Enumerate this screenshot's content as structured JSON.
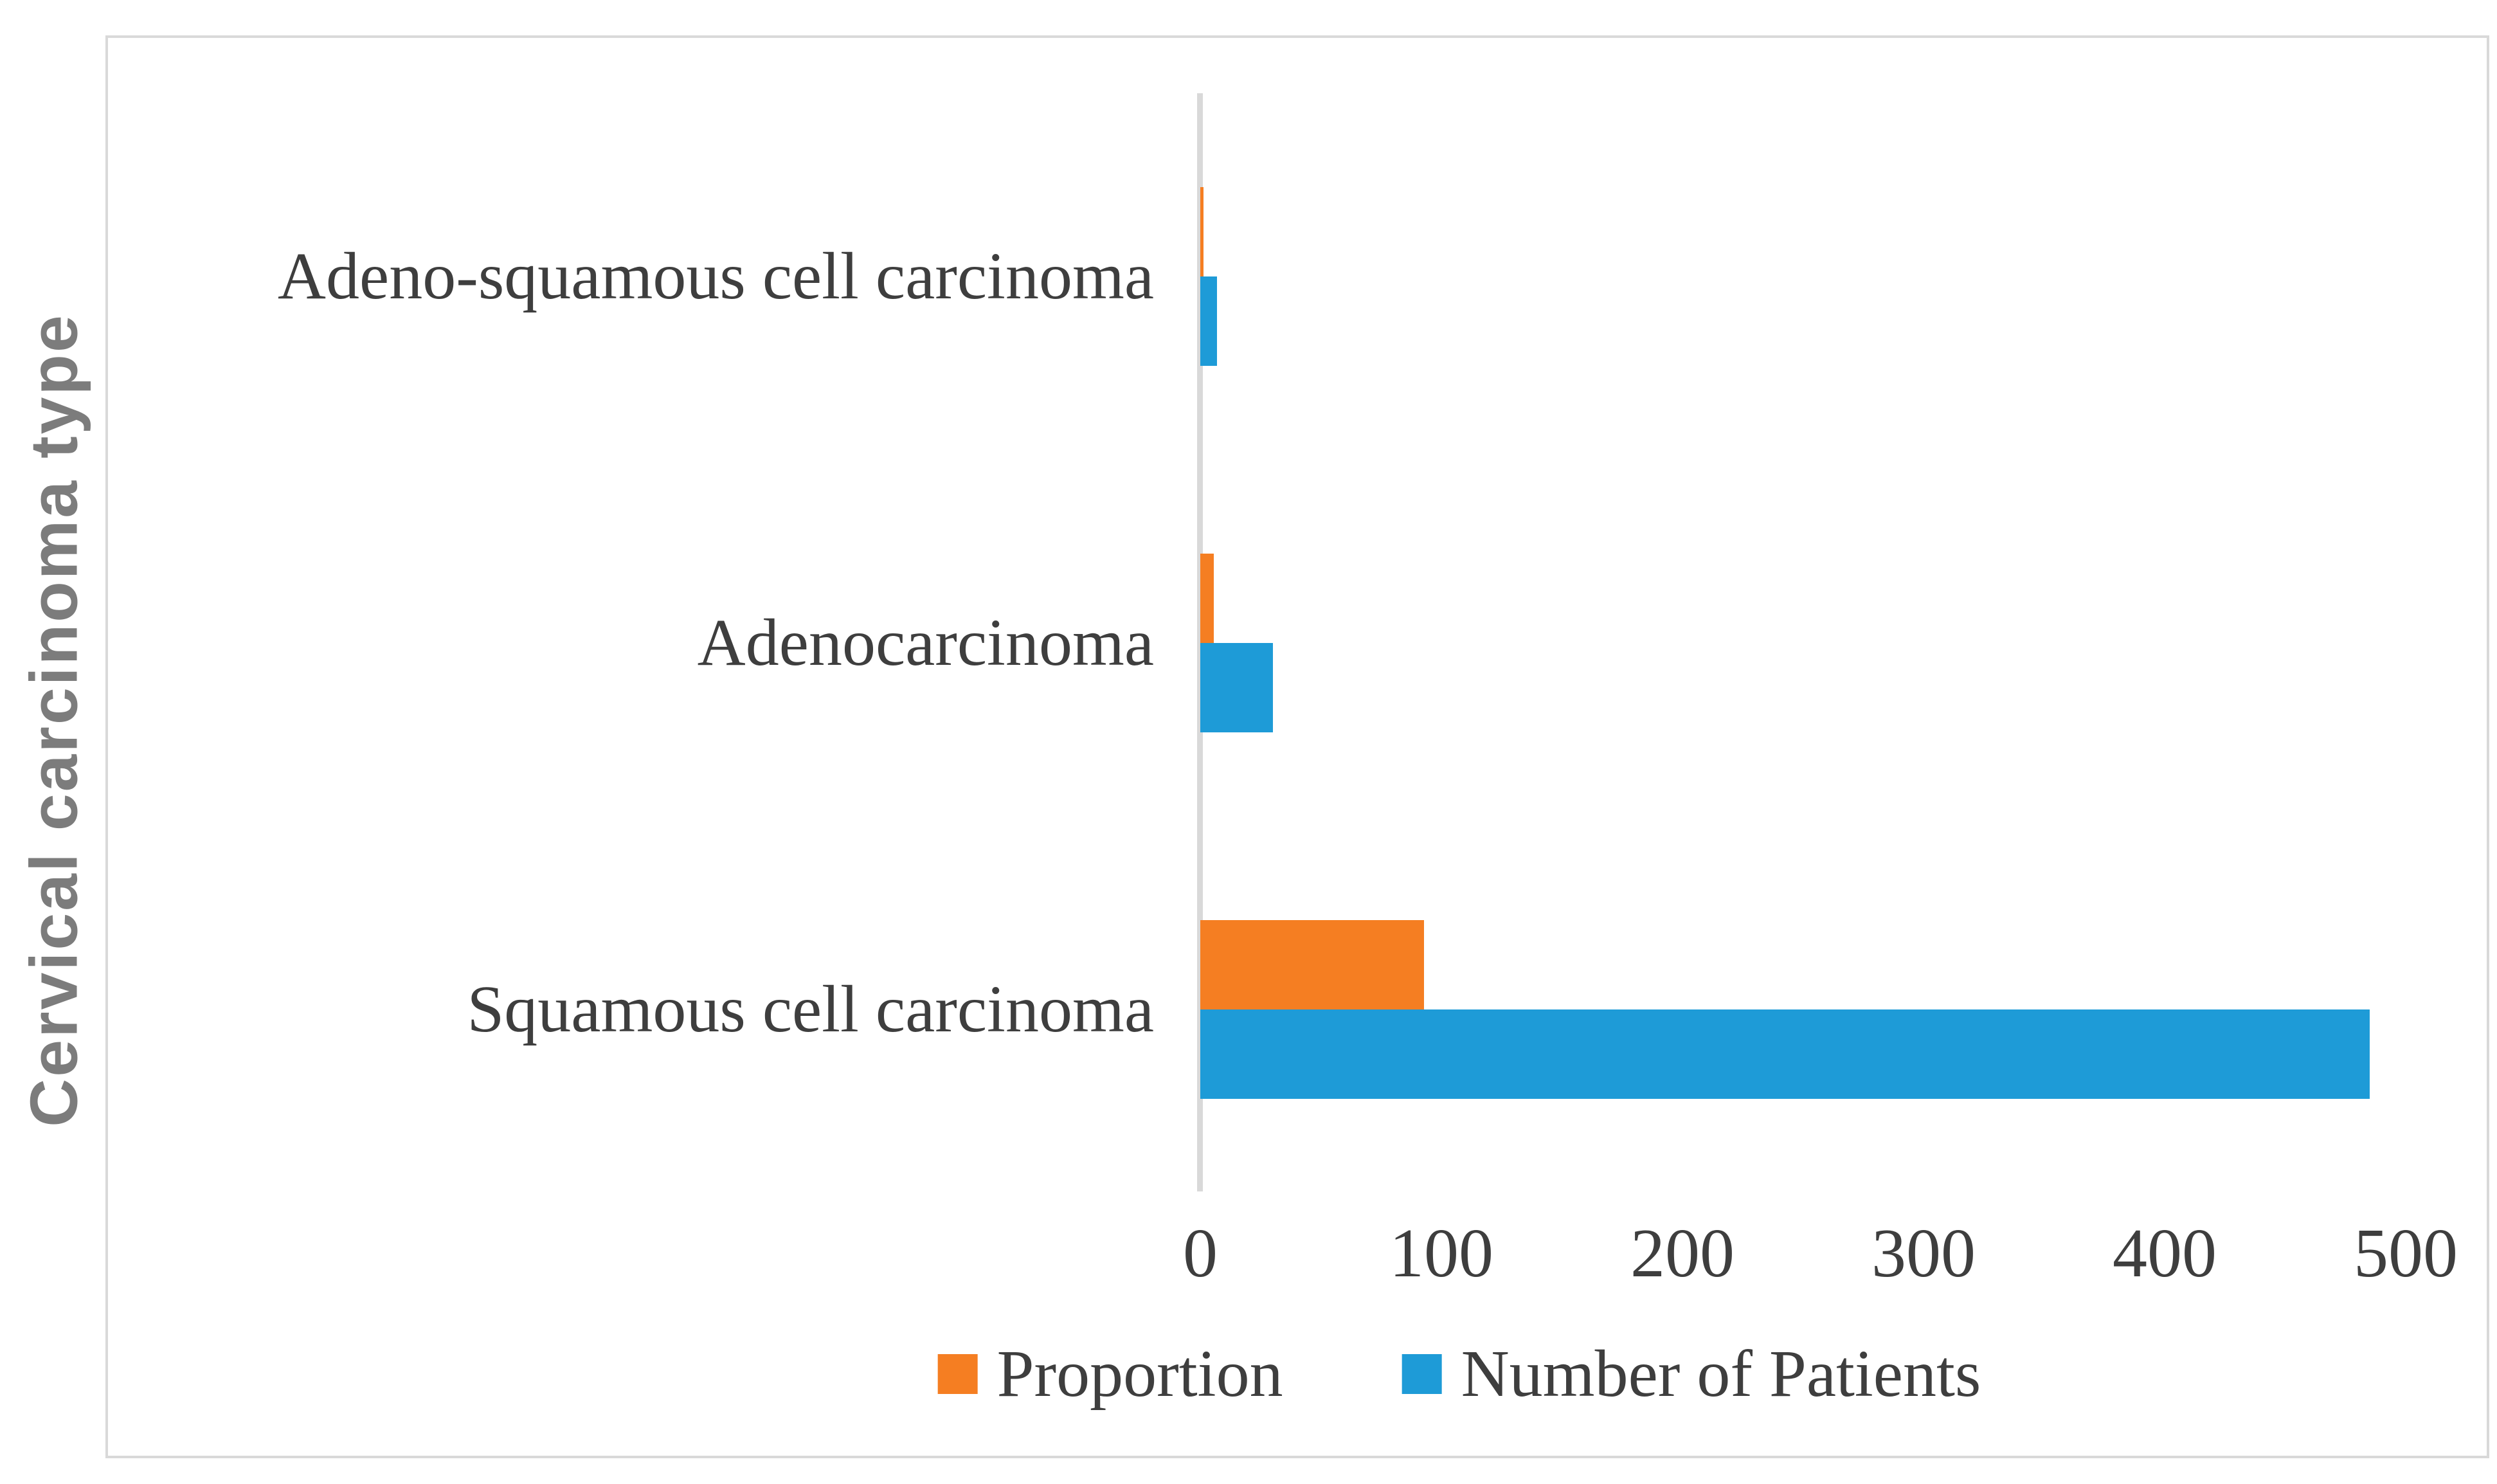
{
  "chart_data": {
    "type": "bar",
    "orientation": "horizontal",
    "title": "",
    "xlabel": "",
    "ylabel": "Cervical carcinoma type",
    "categories": [
      "Adeno-squamous cell carcinoma",
      "Adenocarcinoma",
      "Squamous cell carcinoma"
    ],
    "series": [
      {
        "name": "Proportion",
        "color": "#F57E22",
        "values": [
          1.3,
          5.7,
          92.9
        ]
      },
      {
        "name": "Number of Patients",
        "color": "#1E9BD7",
        "values": [
          7,
          30,
          485
        ]
      }
    ],
    "x_ticks": [
      "0",
      "100",
      "200",
      "300",
      "400",
      "500"
    ],
    "xlim": [
      0,
      520
    ],
    "grid": false,
    "legend_position": "bottom"
  },
  "colors": {
    "frame_border": "#D9D9D9",
    "axis_line": "#D9D9D9",
    "category_text": "#3E3E3E",
    "tick_text": "#3E3E3E",
    "axis_title_text": "#7C7C7C",
    "proportion_bar": "#F57E22",
    "patients_bar": "#1E9BD7"
  }
}
